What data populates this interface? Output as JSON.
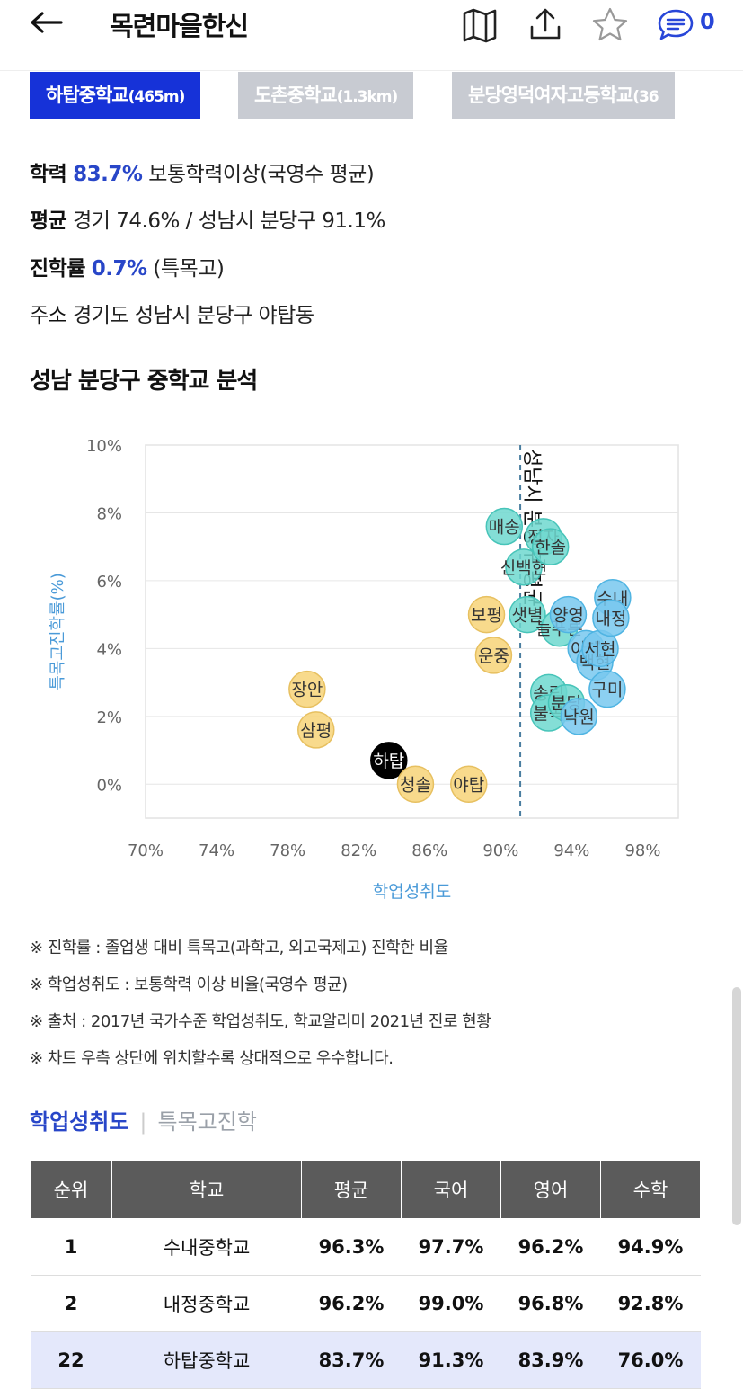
{
  "header": {
    "title": "목련마을한신",
    "comment_count": "0"
  },
  "school_tabs": [
    {
      "name": "하탑중학교",
      "dist": "(465m)",
      "active": true
    },
    {
      "name": "도촌중학교",
      "dist": "(1.3km)",
      "active": false
    },
    {
      "name": "분당영덕여자고등학교",
      "dist": "(36",
      "active": false
    }
  ],
  "info": {
    "achievement_label": "학력",
    "achievement_value": "83.7%",
    "achievement_desc": "보통학력이상(국영수 평균)",
    "avg_label": "평균",
    "avg_desc": "경기 74.6% / 성남시 분당구 91.1%",
    "advance_label": "진학률",
    "advance_value": "0.7%",
    "advance_desc": "(특목고)",
    "addr_label": "주소",
    "addr_desc": "경기도 성남시 분당구 야탑동"
  },
  "section_title": "성남 분당구 중학교 분석",
  "chart_data": {
    "type": "scatter",
    "xlabel": "학업성취도",
    "ylabel": "특목고진학률(%)",
    "xlim": [
      70,
      100
    ],
    "ylim": [
      -1,
      10
    ],
    "x_ticks": [
      "70%",
      "74%",
      "78%",
      "82%",
      "86%",
      "90%",
      "94%",
      "98%"
    ],
    "y_ticks": [
      "10%",
      "8%",
      "6%",
      "4%",
      "2%",
      "0%"
    ],
    "reference_line": {
      "x": 91.1,
      "label": "성남시 분당구 평균"
    },
    "colors": {
      "below": "#f7d478",
      "below_stroke": "#e7c060",
      "mid": "#6fd8cf",
      "mid_stroke": "#47c4b9",
      "high": "#78c8ee",
      "high_stroke": "#4fb4e2",
      "self": "#000000"
    },
    "points": [
      {
        "name": "장안",
        "x": 79.1,
        "y": 2.8,
        "group": "below"
      },
      {
        "name": "삼평",
        "x": 79.6,
        "y": 1.6,
        "group": "below"
      },
      {
        "name": "하탑",
        "x": 83.7,
        "y": 0.7,
        "group": "self"
      },
      {
        "name": "청솔",
        "x": 85.2,
        "y": 0.0,
        "group": "below"
      },
      {
        "name": "야탑",
        "x": 88.2,
        "y": 0.0,
        "group": "below"
      },
      {
        "name": "보평",
        "x": 89.2,
        "y": 5.0,
        "group": "below"
      },
      {
        "name": "운중",
        "x": 89.6,
        "y": 3.8,
        "group": "below"
      },
      {
        "name": "매송",
        "x": 90.2,
        "y": 7.6,
        "group": "mid"
      },
      {
        "name": "신백현",
        "x": 91.3,
        "y": 6.4,
        "group": "mid"
      },
      {
        "name": "샛별",
        "x": 91.5,
        "y": 5.0,
        "group": "mid"
      },
      {
        "name": "정자",
        "x": 92.4,
        "y": 7.3,
        "group": "mid"
      },
      {
        "name": "한솔",
        "x": 92.8,
        "y": 7.0,
        "group": "mid"
      },
      {
        "name": "늘푸른",
        "x": 93.3,
        "y": 4.6,
        "group": "mid"
      },
      {
        "name": "송림",
        "x": 92.7,
        "y": 2.7,
        "group": "mid"
      },
      {
        "name": "불곡",
        "x": 92.7,
        "y": 2.1,
        "group": "mid"
      },
      {
        "name": "양영",
        "x": 93.8,
        "y": 5.0,
        "group": "high"
      },
      {
        "name": "이매",
        "x": 94.8,
        "y": 4.0,
        "group": "high"
      },
      {
        "name": "백현",
        "x": 95.3,
        "y": 3.6,
        "group": "high"
      },
      {
        "name": "서현",
        "x": 95.6,
        "y": 4.0,
        "group": "high"
      },
      {
        "name": "수내",
        "x": 96.3,
        "y": 5.5,
        "group": "high"
      },
      {
        "name": "내정",
        "x": 96.2,
        "y": 4.9,
        "group": "high"
      },
      {
        "name": "구미",
        "x": 96.0,
        "y": 2.8,
        "group": "high"
      },
      {
        "name": "분당",
        "x": 93.7,
        "y": 2.4,
        "group": "mid"
      },
      {
        "name": "낙원",
        "x": 94.4,
        "y": 2.0,
        "group": "high"
      }
    ]
  },
  "notes": [
    "※ 진학률 : 졸업생 대비 특목고(과학고, 외고국제고) 진학한 비율",
    "※ 학업성취도 : 보통학력 이상 비율(국영수 평균)",
    "※ 출처 : 2017년 국가수준 학업성취도, 학교알리미 2021년 진로 현황",
    "※ 차트 우측 상단에 위치할수록 상대적으로 우수합니다."
  ],
  "sub_tabs": {
    "active": "학업성취도",
    "inactive": "특목고진학"
  },
  "table": {
    "headers": [
      "순위",
      "학교",
      "평균",
      "국어",
      "영어",
      "수학"
    ],
    "rows": [
      {
        "rank": "1",
        "school": "수내중학교",
        "avg": "96.3%",
        "kor": "97.7%",
        "eng": "96.2%",
        "math": "94.9%",
        "highlight": false
      },
      {
        "rank": "2",
        "school": "내정중학교",
        "avg": "96.2%",
        "kor": "99.0%",
        "eng": "96.8%",
        "math": "92.8%",
        "highlight": false
      },
      {
        "rank": "22",
        "school": "하탑중학교",
        "avg": "83.7%",
        "kor": "91.3%",
        "eng": "83.9%",
        "math": "76.0%",
        "highlight": true
      }
    ]
  }
}
